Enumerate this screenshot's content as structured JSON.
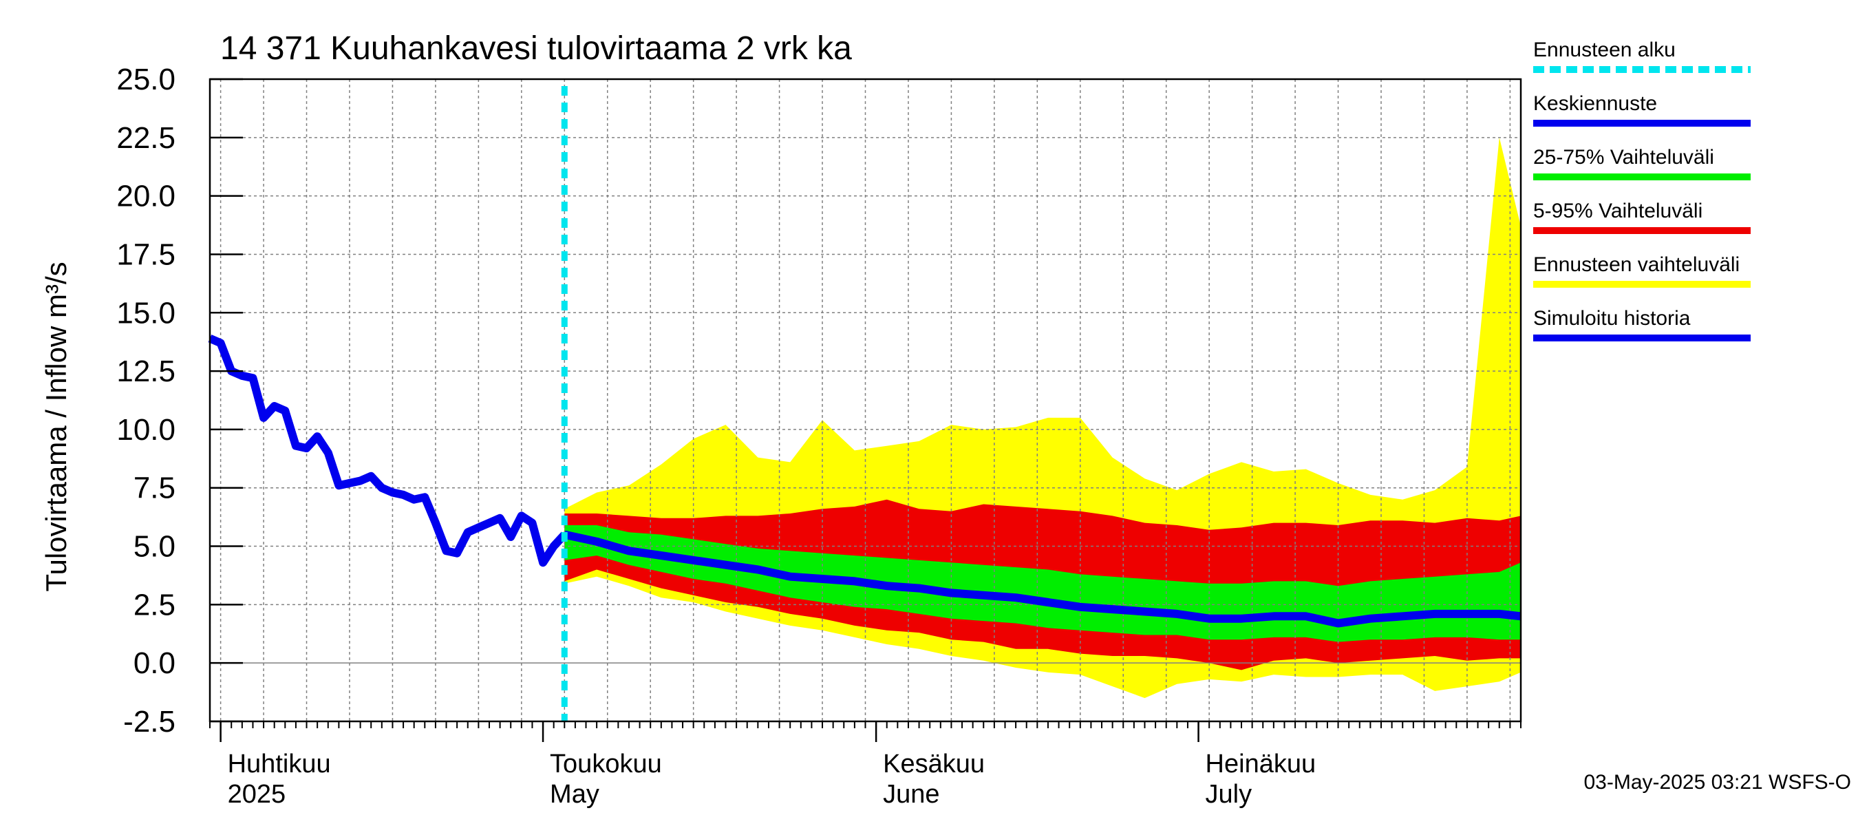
{
  "chart_data": {
    "type": "area",
    "title": "14 371 Kuuhankavesi tulovirtaama 2 vrk ka",
    "ylabel": "Tulovirtaama / Inflow    m³/s",
    "ylim": [
      -2.5,
      25.0
    ],
    "yticks": [
      "25.0",
      "22.5",
      "20.0",
      "17.5",
      "15.0",
      "12.5",
      "10.0",
      "7.5",
      "5.0",
      "2.5",
      "0.0",
      "-2.5"
    ],
    "ytick_values": [
      25.0,
      22.5,
      20.0,
      17.5,
      15.0,
      12.5,
      10.0,
      7.5,
      5.0,
      2.5,
      0.0,
      -2.5
    ],
    "xlim": [
      "2025-03-31",
      "2025-07-31"
    ],
    "x_month_labels": [
      {
        "date": "2025-04-01",
        "line1": "Huhtikuu",
        "line2": "2025"
      },
      {
        "date": "2025-05-01",
        "line1": "Toukokuu",
        "line2": "May"
      },
      {
        "date": "2025-06-01",
        "line1": "Kesäkuu",
        "line2": "June"
      },
      {
        "date": "2025-07-01",
        "line1": "Heinäkuu",
        "line2": "July"
      }
    ],
    "forecast_start": "2025-05-03",
    "legend": {
      "placement": "right",
      "items": [
        {
          "label": "Ennusteen alku",
          "color": "#00e5ee",
          "style": "dashed"
        },
        {
          "label": "Keskiennuste",
          "color": "#0000ee",
          "style": "solid"
        },
        {
          "label": "25-75% Vaihteluväli",
          "color": "#00ee00",
          "style": "solid"
        },
        {
          "label": "5-95% Vaihteluväli",
          "color": "#ee0000",
          "style": "solid"
        },
        {
          "label": "Ennusteen vaihteluväli",
          "color": "#ffff00",
          "style": "solid"
        },
        {
          "label": "Simuloitu historia",
          "color": "#0000ee",
          "style": "solid"
        }
      ]
    },
    "colors": {
      "history": "#0000ee",
      "median": "#0000ee",
      "band_25_75": "#00ee00",
      "band_5_95": "#ee0000",
      "band_full": "#ffff00",
      "forecast_start": "#00e5ee",
      "grid": "#808080"
    },
    "series": [
      {
        "name": "Simuloitu historia",
        "x": [
          "2025-03-31",
          "2025-04-01",
          "2025-04-02",
          "2025-04-03",
          "2025-04-04",
          "2025-04-05",
          "2025-04-06",
          "2025-04-07",
          "2025-04-08",
          "2025-04-09",
          "2025-04-10",
          "2025-04-11",
          "2025-04-12",
          "2025-04-13",
          "2025-04-14",
          "2025-04-15",
          "2025-04-16",
          "2025-04-17",
          "2025-04-18",
          "2025-04-19",
          "2025-04-20",
          "2025-04-21",
          "2025-04-22",
          "2025-04-23",
          "2025-04-24",
          "2025-04-25",
          "2025-04-26",
          "2025-04-27",
          "2025-04-28",
          "2025-04-29",
          "2025-04-30",
          "2025-05-01",
          "2025-05-02",
          "2025-05-03"
        ],
        "values": [
          13.9,
          13.7,
          12.5,
          12.3,
          12.2,
          10.5,
          11.0,
          10.8,
          9.3,
          9.2,
          9.7,
          9.0,
          7.6,
          7.7,
          7.8,
          8.0,
          7.5,
          7.3,
          7.2,
          7.0,
          7.1,
          6.0,
          4.8,
          4.7,
          5.6,
          5.8,
          6.0,
          6.2,
          5.4,
          6.3,
          6.0,
          4.3,
          5.0,
          5.5
        ]
      },
      {
        "name": "Keskiennuste",
        "x": [
          "2025-05-03",
          "2025-05-06",
          "2025-05-09",
          "2025-05-12",
          "2025-05-15",
          "2025-05-18",
          "2025-05-21",
          "2025-05-24",
          "2025-05-27",
          "2025-05-30",
          "2025-06-02",
          "2025-06-05",
          "2025-06-08",
          "2025-06-11",
          "2025-06-14",
          "2025-06-17",
          "2025-06-20",
          "2025-06-23",
          "2025-06-26",
          "2025-06-29",
          "2025-07-02",
          "2025-07-05",
          "2025-07-08",
          "2025-07-11",
          "2025-07-14",
          "2025-07-17",
          "2025-07-20",
          "2025-07-23",
          "2025-07-26",
          "2025-07-29",
          "2025-07-31"
        ],
        "values": [
          5.5,
          5.2,
          4.8,
          4.6,
          4.4,
          4.2,
          4.0,
          3.7,
          3.6,
          3.5,
          3.3,
          3.2,
          3.0,
          2.9,
          2.8,
          2.6,
          2.4,
          2.3,
          2.2,
          2.1,
          1.9,
          1.9,
          2.0,
          2.0,
          1.7,
          1.9,
          2.0,
          2.1,
          2.1,
          2.1,
          2.0
        ]
      },
      {
        "name": "25-75% Vaihteluväli",
        "x": [
          "2025-05-03",
          "2025-05-06",
          "2025-05-09",
          "2025-05-12",
          "2025-05-15",
          "2025-05-18",
          "2025-05-21",
          "2025-05-24",
          "2025-05-27",
          "2025-05-30",
          "2025-06-02",
          "2025-06-05",
          "2025-06-08",
          "2025-06-11",
          "2025-06-14",
          "2025-06-17",
          "2025-06-20",
          "2025-06-23",
          "2025-06-26",
          "2025-06-29",
          "2025-07-02",
          "2025-07-05",
          "2025-07-08",
          "2025-07-11",
          "2025-07-14",
          "2025-07-17",
          "2025-07-20",
          "2025-07-23",
          "2025-07-26",
          "2025-07-29",
          "2025-07-31"
        ],
        "low": [
          4.4,
          4.6,
          4.2,
          3.9,
          3.6,
          3.4,
          3.1,
          2.8,
          2.6,
          2.4,
          2.3,
          2.1,
          1.9,
          1.8,
          1.7,
          1.5,
          1.4,
          1.3,
          1.2,
          1.2,
          1.0,
          1.0,
          1.1,
          1.1,
          0.9,
          1.0,
          1.0,
          1.1,
          1.1,
          1.0,
          1.0
        ],
        "high": [
          5.9,
          5.9,
          5.6,
          5.5,
          5.3,
          5.1,
          4.9,
          4.8,
          4.7,
          4.6,
          4.5,
          4.4,
          4.3,
          4.2,
          4.1,
          4.0,
          3.8,
          3.7,
          3.6,
          3.5,
          3.4,
          3.4,
          3.5,
          3.5,
          3.3,
          3.5,
          3.6,
          3.7,
          3.8,
          3.9,
          4.3
        ]
      },
      {
        "name": "5-95% Vaihteluväli",
        "x": [
          "2025-05-03",
          "2025-05-06",
          "2025-05-09",
          "2025-05-12",
          "2025-05-15",
          "2025-05-18",
          "2025-05-21",
          "2025-05-24",
          "2025-05-27",
          "2025-05-30",
          "2025-06-02",
          "2025-06-05",
          "2025-06-08",
          "2025-06-11",
          "2025-06-14",
          "2025-06-17",
          "2025-06-20",
          "2025-06-23",
          "2025-06-26",
          "2025-06-29",
          "2025-07-02",
          "2025-07-05",
          "2025-07-08",
          "2025-07-11",
          "2025-07-14",
          "2025-07-17",
          "2025-07-20",
          "2025-07-23",
          "2025-07-26",
          "2025-07-29",
          "2025-07-31"
        ],
        "low": [
          3.5,
          4.0,
          3.6,
          3.2,
          2.9,
          2.6,
          2.4,
          2.1,
          1.9,
          1.6,
          1.4,
          1.3,
          1.0,
          0.9,
          0.6,
          0.6,
          0.4,
          0.3,
          0.3,
          0.2,
          0.0,
          -0.3,
          0.1,
          0.2,
          0.0,
          0.1,
          0.2,
          0.3,
          0.1,
          0.2,
          0.2
        ],
        "high": [
          6.4,
          6.4,
          6.3,
          6.2,
          6.2,
          6.3,
          6.3,
          6.4,
          6.6,
          6.7,
          7.0,
          6.6,
          6.5,
          6.8,
          6.7,
          6.6,
          6.5,
          6.3,
          6.0,
          5.9,
          5.7,
          5.8,
          6.0,
          6.0,
          5.9,
          6.1,
          6.1,
          6.0,
          6.2,
          6.1,
          6.3
        ]
      },
      {
        "name": "Ennusteen vaihteluväli",
        "x": [
          "2025-05-03",
          "2025-05-06",
          "2025-05-09",
          "2025-05-12",
          "2025-05-15",
          "2025-05-18",
          "2025-05-21",
          "2025-05-24",
          "2025-05-27",
          "2025-05-30",
          "2025-06-02",
          "2025-06-05",
          "2025-06-08",
          "2025-06-11",
          "2025-06-14",
          "2025-06-17",
          "2025-06-20",
          "2025-06-23",
          "2025-06-26",
          "2025-06-29",
          "2025-07-02",
          "2025-07-05",
          "2025-07-08",
          "2025-07-11",
          "2025-07-14",
          "2025-07-17",
          "2025-07-20",
          "2025-07-23",
          "2025-07-26",
          "2025-07-29",
          "2025-07-31"
        ],
        "low": [
          3.4,
          3.7,
          3.3,
          2.8,
          2.6,
          2.2,
          1.9,
          1.6,
          1.4,
          1.1,
          0.8,
          0.6,
          0.3,
          0.1,
          -0.2,
          -0.4,
          -0.5,
          -1.0,
          -1.5,
          -0.9,
          -0.7,
          -0.8,
          -0.5,
          -0.6,
          -0.6,
          -0.5,
          -0.5,
          -1.2,
          -1.0,
          -0.8,
          -0.4
        ],
        "high": [
          6.6,
          7.3,
          7.6,
          8.5,
          9.6,
          10.2,
          8.8,
          8.6,
          10.4,
          9.1,
          9.3,
          9.5,
          10.2,
          10.0,
          10.1,
          10.5,
          10.5,
          8.8,
          7.9,
          7.4,
          8.1,
          8.6,
          8.2,
          8.3,
          7.7,
          7.2,
          7.0,
          7.4,
          8.4,
          22.5,
          18.7
        ]
      }
    ]
  },
  "footer_text": "03-May-2025 03:21 WSFS-O"
}
